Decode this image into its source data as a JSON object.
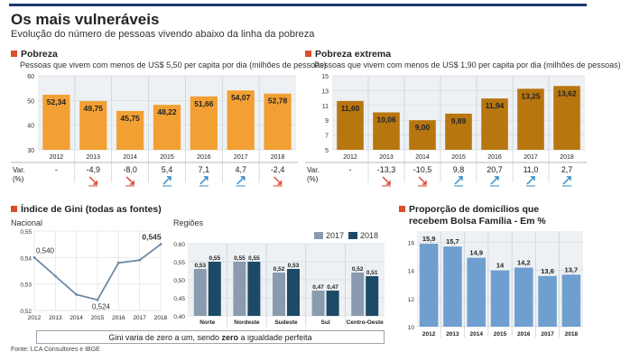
{
  "title": "Os mais vulneráveis",
  "subtitle": "Evolução do número de pessoas vivendo abaixo da linha da pobreza",
  "source": "Fonte: LCA Consultores e IBGE",
  "colors": {
    "marker": "#d94f2b",
    "pobreza_bar": "#f2a033",
    "extrema_bar": "#b8760f",
    "gini_line": "#6d8aa6",
    "regioes_2017": "#8a9bb0",
    "regioes_2018": "#1d4a66",
    "bolsa_bar": "#6f9fcf",
    "panel_bg": "#eef1f4",
    "icon_red": "#d9432b",
    "icon_blue": "#2b88c2"
  },
  "pobreza": {
    "heading": "Pobreza",
    "description": "Pessoas que vivem com menos de US$ 5,50 per capita por dia (milhões de pessoas)",
    "var_label": "Var. (%)",
    "var_values": [
      "-",
      "-4,9",
      "-8,0",
      "5,4",
      "7,1",
      "4,7",
      "-2,4"
    ],
    "var_icons": [
      "",
      "arrow-down-icon",
      "arrow-down-icon",
      "arrow-up-icon",
      "arrow-up-icon",
      "arrow-up-icon",
      "arrow-down-icon"
    ]
  },
  "extrema": {
    "heading": "Pobreza extrema",
    "description": "Pessoas que vivem com menos de US$ 1,90 per capita por dia (milhões de pessoas)",
    "var_label": "Var. (%)",
    "var_values": [
      "-",
      "-13,3",
      "-10,5",
      "9,8",
      "20,7",
      "11,0",
      "2,7"
    ],
    "var_icons": [
      "",
      "arrow-down-icon",
      "arrow-down-icon",
      "arrow-up-icon",
      "arrow-up-icon",
      "arrow-up-icon",
      "arrow-up-icon"
    ]
  },
  "gini": {
    "heading": "Índice de Gini (todas as fontes)",
    "nacional_label": "Nacional",
    "regioes_label": "Regiões",
    "note_pre": "Gini varia de zero a um, sendo ",
    "note_bold": "zero",
    "note_post": " a igualdade perfeita"
  },
  "bolsa": {
    "heading_line1": "Proporção de domicílios que",
    "heading_line2": "recebem Bolsa Família - Em %"
  },
  "chart_data": [
    {
      "id": "pobreza",
      "type": "bar",
      "categories": [
        "2012",
        "2013",
        "2014",
        "2015",
        "2016",
        "2017",
        "2018"
      ],
      "values": [
        52.34,
        49.75,
        45.75,
        48.22,
        51.66,
        54.07,
        52.78
      ],
      "value_labels": [
        "52,34",
        "49,75",
        "45,75",
        "48,22",
        "51,66",
        "54,07",
        "52,78"
      ],
      "yticks": [
        "30",
        "40",
        "50",
        "60"
      ],
      "ylim": [
        30,
        60
      ],
      "grid": true
    },
    {
      "id": "extrema",
      "type": "bar",
      "categories": [
        "2012",
        "2013",
        "2014",
        "2015",
        "2016",
        "2017",
        "2018"
      ],
      "values": [
        11.6,
        10.06,
        9.0,
        9.89,
        11.94,
        13.25,
        13.62
      ],
      "value_labels": [
        "11,60",
        "10,06",
        "9,00",
        "9,89",
        "11,94",
        "13,25",
        "13,62"
      ],
      "yticks": [
        "5",
        "7",
        "9",
        "11",
        "13",
        "15"
      ],
      "ylim": [
        5,
        15
      ],
      "grid": true
    },
    {
      "id": "gini_nacional",
      "type": "line",
      "x": [
        "2012",
        "2013",
        "2014",
        "2015",
        "2016",
        "2017",
        "2018"
      ],
      "values": [
        0.54,
        0.533,
        0.526,
        0.524,
        0.538,
        0.539,
        0.545
      ],
      "point_labels": [
        {
          "index": 0,
          "text": "0,540"
        },
        {
          "index": 3,
          "text": "0,524"
        },
        {
          "index": 6,
          "text": "0,545"
        }
      ],
      "yticks": [
        "0,52",
        "0,53",
        "0,54",
        "0,55"
      ],
      "ylim": [
        0.52,
        0.55
      ],
      "grid": true
    },
    {
      "id": "gini_regioes",
      "type": "bar",
      "categories": [
        "Norte",
        "Nordeste",
        "Sudeste",
        "Sul",
        "Centro-Oeste"
      ],
      "series": [
        {
          "name": "2017",
          "values": [
            0.53,
            0.55,
            0.52,
            0.47,
            0.52
          ],
          "value_labels": [
            "0,53",
            "0,55",
            "0,52",
            "0,47",
            "0,52"
          ]
        },
        {
          "name": "2018",
          "values": [
            0.55,
            0.55,
            0.53,
            0.47,
            0.51
          ],
          "value_labels": [
            "0,55",
            "0,55",
            "0,53",
            "0,47",
            "0,51"
          ]
        }
      ],
      "yticks": [
        "0,40",
        "0,45",
        "0,50",
        "0,55",
        "0,60"
      ],
      "ylim": [
        0.4,
        0.6
      ],
      "legend": "top-right",
      "grid": true
    },
    {
      "id": "bolsa",
      "type": "bar",
      "categories": [
        "2012",
        "2013",
        "2014",
        "2015",
        "2016",
        "2017",
        "2018"
      ],
      "values": [
        15.9,
        15.7,
        14.9,
        14,
        14.2,
        13.6,
        13.7
      ],
      "value_labels": [
        "15,9",
        "15,7",
        "14,9",
        "14",
        "14,2",
        "13,6",
        "13,7"
      ],
      "yticks": [
        "10",
        "12",
        "14",
        "16"
      ],
      "ylim": [
        10,
        16.8
      ],
      "grid": true
    }
  ]
}
